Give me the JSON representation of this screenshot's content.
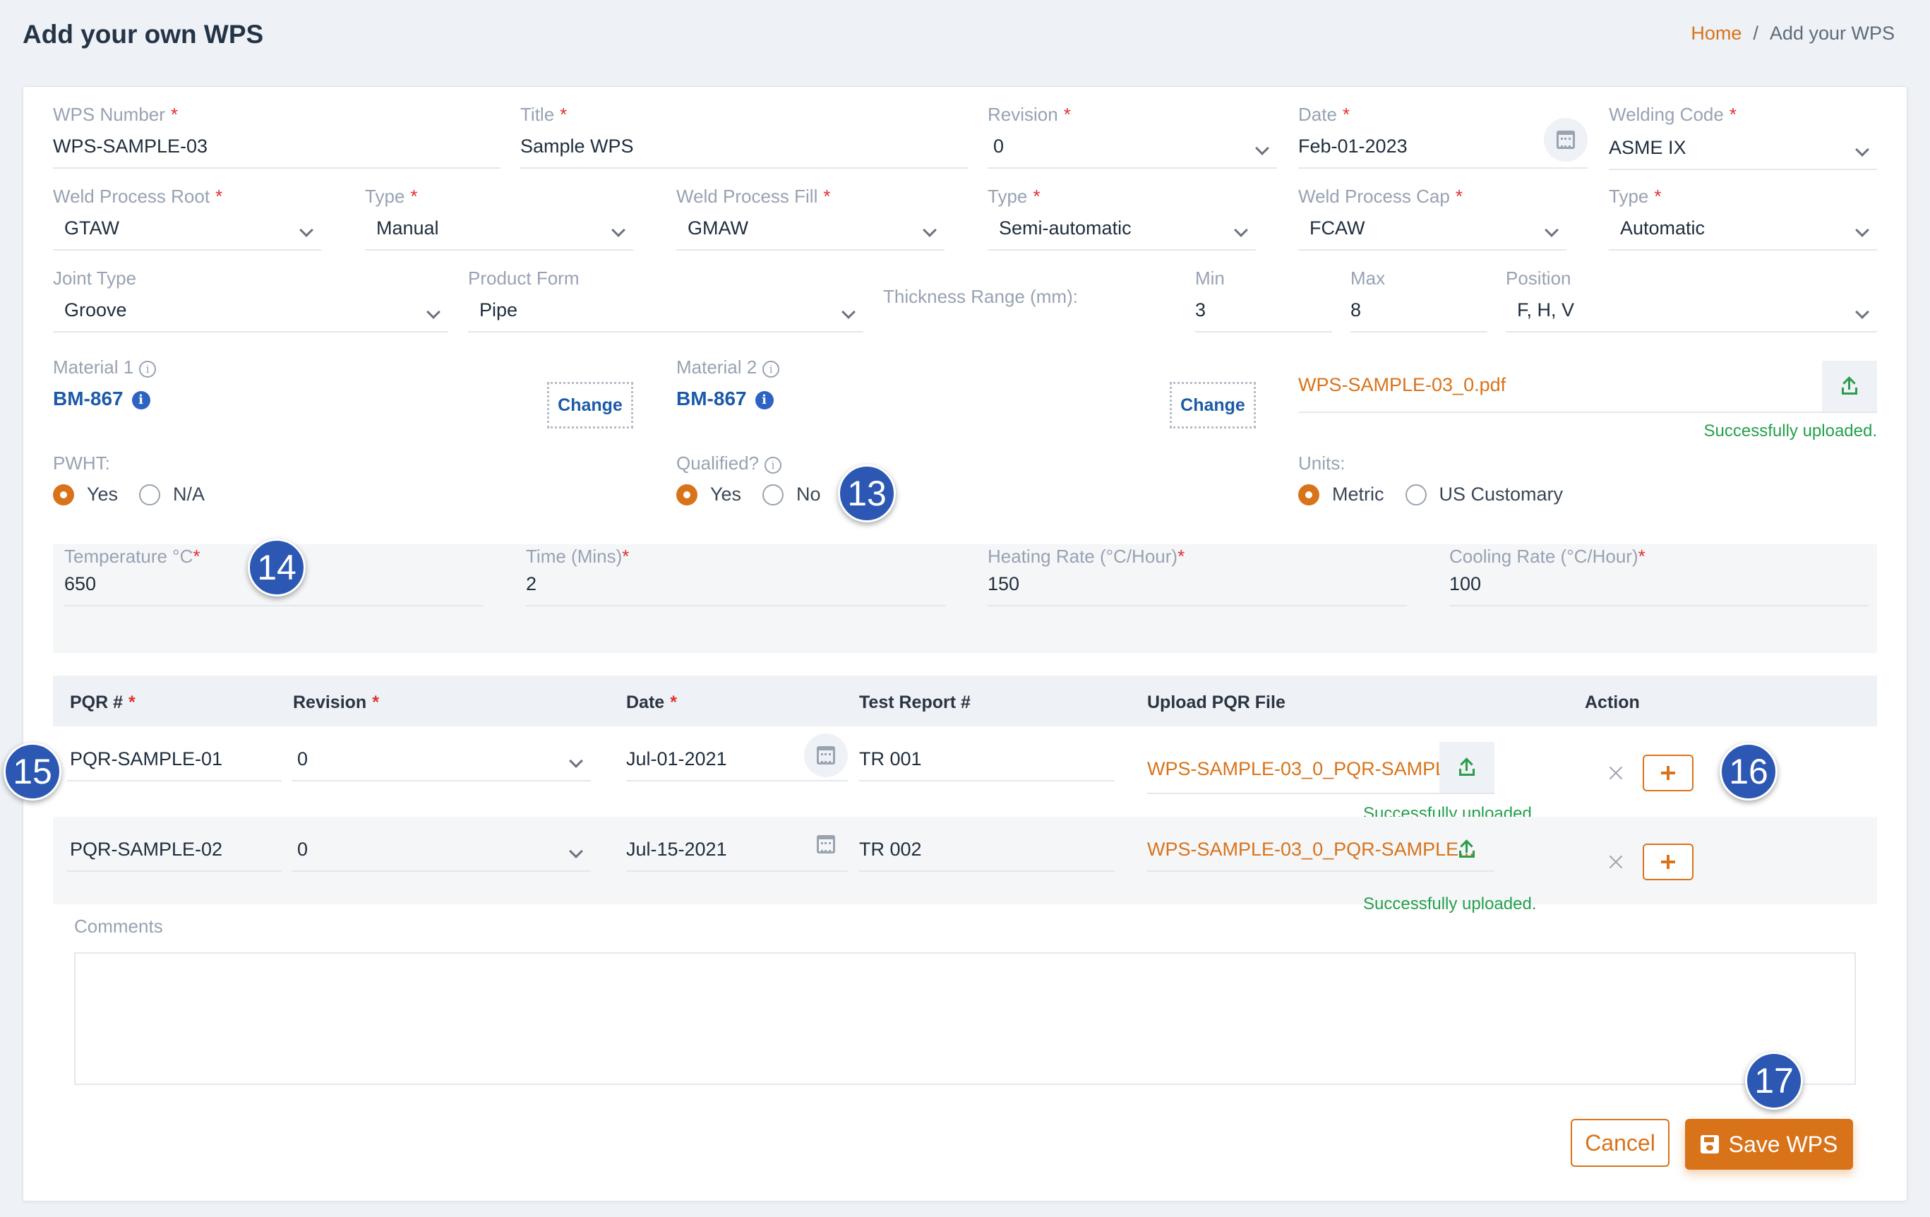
{
  "page": {
    "title": "Add your own WPS",
    "breadcrumb": {
      "home": "Home",
      "separator": "/",
      "current": "Add your WPS"
    }
  },
  "row1": {
    "wps_number": {
      "label": "WPS Number",
      "value": "WPS-SAMPLE-03"
    },
    "title": {
      "label": "Title",
      "value": "Sample WPS"
    },
    "revision": {
      "label": "Revision",
      "value": "0"
    },
    "date": {
      "label": "Date",
      "value": "Feb-01-2023"
    },
    "welding_code": {
      "label": "Welding Code",
      "value": "ASME IX"
    }
  },
  "row2": {
    "root_process": {
      "label": "Weld Process Root",
      "value": "GTAW"
    },
    "root_type": {
      "label": "Type",
      "value": "Manual"
    },
    "fill_process": {
      "label": "Weld Process Fill",
      "value": "GMAW"
    },
    "fill_type": {
      "label": "Type",
      "value": "Semi-automatic"
    },
    "cap_process": {
      "label": "Weld Process Cap",
      "value": "FCAW"
    },
    "cap_type": {
      "label": "Type",
      "value": "Automatic"
    }
  },
  "row3": {
    "joint_type": {
      "label": "Joint Type",
      "value": "Groove"
    },
    "product_form": {
      "label": "Product Form",
      "value": "Pipe"
    },
    "thickness_label": "Thickness Range (mm):",
    "min": {
      "label": "Min",
      "value": "3"
    },
    "max": {
      "label": "Max",
      "value": "8"
    },
    "position": {
      "label": "Position",
      "value": "F, H, V"
    }
  },
  "materials": {
    "material1": {
      "label": "Material 1",
      "value": "BM-867",
      "change": "Change"
    },
    "material2": {
      "label": "Material 2",
      "value": "BM-867",
      "change": "Change"
    },
    "file": {
      "name": "WPS-SAMPLE-03_0.pdf",
      "status": "Successfully uploaded."
    }
  },
  "options": {
    "pwht": {
      "label": "PWHT:",
      "options": [
        "Yes",
        "N/A"
      ],
      "selected": "Yes"
    },
    "qualified": {
      "label": "Qualified?",
      "options": [
        "Yes",
        "No"
      ],
      "selected": "Yes"
    },
    "units": {
      "label": "Units:",
      "options": [
        "Metric",
        "US Customary"
      ],
      "selected": "Metric"
    }
  },
  "pwht_details": {
    "temperature": {
      "label": "Temperature °C",
      "value": "650"
    },
    "time": {
      "label": "Time (Mins)",
      "value": "2"
    },
    "heating_rate": {
      "label": "Heating Rate (°C/Hour)",
      "value": "150"
    },
    "cooling_rate": {
      "label": "Cooling Rate (°C/Hour)",
      "value": "100"
    }
  },
  "pqr_table": {
    "headers": [
      "PQR #",
      "Revision",
      "Date",
      "Test Report #",
      "Upload PQR File",
      "Action"
    ],
    "rows": [
      {
        "pqr": "PQR-SAMPLE-01",
        "revision": "0",
        "date": "Jul-01-2021",
        "test_report": "TR 001",
        "file": "WPS-SAMPLE-03_0_PQR-SAMPLE...",
        "status": "Successfully uploaded."
      },
      {
        "pqr": "PQR-SAMPLE-02",
        "revision": "0",
        "date": "Jul-15-2021",
        "test_report": "TR 002",
        "file": "WPS-SAMPLE-03_0_PQR-SAMPLE...",
        "status": "Successfully uploaded."
      }
    ]
  },
  "comments": {
    "label": "Comments",
    "value": ""
  },
  "actions": {
    "cancel": "Cancel",
    "save": "Save WPS"
  },
  "steps": [
    "13",
    "14",
    "15",
    "16",
    "17"
  ],
  "colors": {
    "accent": "#d9731a",
    "link": "#1c5aa8",
    "success": "#22a04b",
    "required": "#e03131",
    "step_badge": "#2c58b4"
  },
  "icons": [
    "calendar-icon",
    "chevron-down-icon",
    "info-icon",
    "upload-icon",
    "close-icon",
    "plus-icon",
    "save-icon"
  ]
}
